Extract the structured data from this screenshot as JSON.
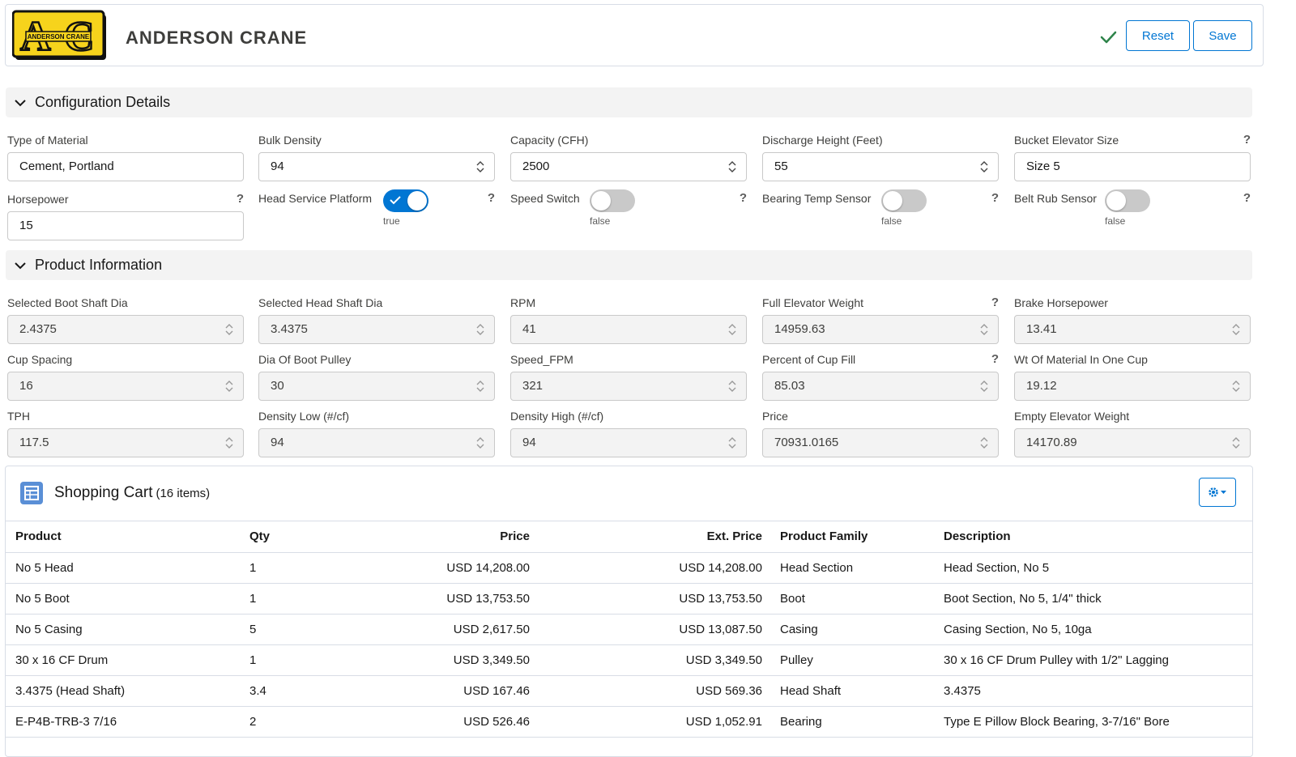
{
  "app": {
    "company_name": "ANDERSON CRANE",
    "logo_text": "ANDERSON CRANE",
    "logo_colors": {
      "yellow": "#f6d31c",
      "black": "#111111"
    }
  },
  "toolbar": {
    "reset_label": "Reset",
    "save_label": "Save",
    "saved_icon": "check-icon"
  },
  "config": {
    "section_title": "Configuration Details",
    "type_of_material": {
      "label": "Type of Material",
      "value": "Cement, Portland"
    },
    "bulk_density": {
      "label": "Bulk Density",
      "value": "94"
    },
    "capacity": {
      "label": "Capacity (CFH)",
      "value": "2500"
    },
    "discharge_height": {
      "label": "Discharge Height (Feet)",
      "value": "55"
    },
    "bucket_elevator_size": {
      "label": "Bucket Elevator Size",
      "value": "Size 5"
    },
    "horsepower": {
      "label": "Horsepower",
      "value": "15"
    },
    "head_service_platform": {
      "label": "Head Service Platform",
      "state": "true"
    },
    "speed_switch": {
      "label": "Speed Switch",
      "state": "false"
    },
    "bearing_temp_sensor": {
      "label": "Bearing Temp Sensor",
      "state": "false"
    },
    "belt_rub_sensor": {
      "label": "Belt Rub Sensor",
      "state": "false"
    },
    "help_mark": "?"
  },
  "product": {
    "section_title": "Product Information",
    "fields": [
      {
        "label": "Selected Boot Shaft Dia",
        "value": "2.4375"
      },
      {
        "label": "Selected Head Shaft Dia",
        "value": "3.4375"
      },
      {
        "label": "RPM",
        "value": "41"
      },
      {
        "label": "Full Elevator Weight",
        "value": "14959.63"
      },
      {
        "label": "Brake Horsepower",
        "value": "13.41"
      },
      {
        "label": "Cup Spacing",
        "value": "16"
      },
      {
        "label": "Dia Of Boot Pulley",
        "value": "30"
      },
      {
        "label": "Speed_FPM",
        "value": "321"
      },
      {
        "label": "Percent of Cup Fill",
        "value": "85.03"
      },
      {
        "label": "Wt Of Material In One Cup",
        "value": "19.12"
      },
      {
        "label": "TPH",
        "value": "117.5"
      },
      {
        "label": "Density Low (#/cf)",
        "value": "94"
      },
      {
        "label": "Density High (#/cf)",
        "value": "94"
      },
      {
        "label": "Price",
        "value": "70931.0165"
      },
      {
        "label": "Empty Elevator Weight",
        "value": "14170.89"
      }
    ]
  },
  "cart": {
    "title": "Shopping Cart",
    "count": "(16 items)",
    "columns": [
      "Product",
      "Qty",
      "Price",
      "Ext. Price",
      "Product Family",
      "Description"
    ],
    "rows": [
      [
        "No 5 Head",
        "1",
        "USD 14,208.00",
        "USD 14,208.00",
        "Head Section",
        "Head Section, No 5"
      ],
      [
        "No 5 Boot",
        "1",
        "USD 13,753.50",
        "USD 13,753.50",
        "Boot",
        "Boot Section, No 5, 1/4\" thick"
      ],
      [
        "No 5 Casing",
        "5",
        "USD 2,617.50",
        "USD 13,087.50",
        "Casing",
        "Casing Section, No 5, 10ga"
      ],
      [
        "30 x 16 CF Drum",
        "1",
        "USD 3,349.50",
        "USD 3,349.50",
        "Pulley",
        "30 x 16 CF Drum Pulley with 1/2\" Lagging"
      ],
      [
        "3.4375 (Head Shaft)",
        "3.4",
        "USD 167.46",
        "USD 569.36",
        "Head Shaft",
        "3.4375"
      ],
      [
        "E-P4B-TRB-3 7/16",
        "2",
        "USD 526.46",
        "USD 1,052.91",
        "Bearing",
        "Type E Pillow Block Bearing, 3-7/16\" Bore"
      ]
    ]
  }
}
